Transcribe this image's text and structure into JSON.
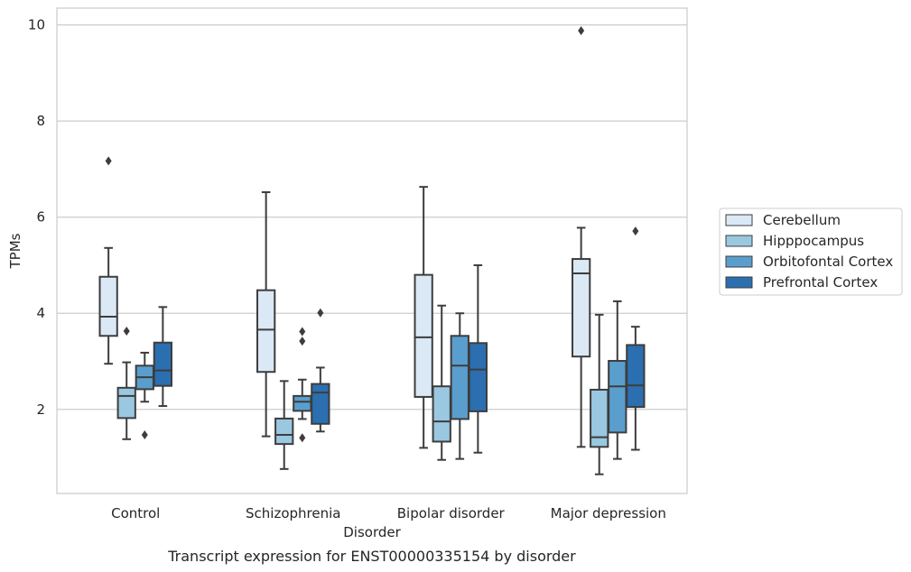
{
  "chart_data": {
    "type": "boxplot",
    "title": "",
    "caption": "Transcript expression for ENST00000335154 by disorder",
    "xlabel": "Disorder",
    "ylabel": "TPMs",
    "ylim": [
      0.25,
      10.35
    ],
    "yticks": [
      2,
      4,
      6,
      8,
      10
    ],
    "grid": "horizontal",
    "legend_position": "right",
    "categories": [
      "Control",
      "Schizophrenia",
      "Bipolar disorder",
      "Major depression"
    ],
    "series": [
      {
        "name": "Cerebellum",
        "color": "#dbe9f6",
        "boxes": [
          {
            "whislo": 2.95,
            "q1": 3.53,
            "med": 3.93,
            "q3": 4.76,
            "whishi": 5.36,
            "fliers": [
              7.17
            ]
          },
          {
            "whislo": 1.44,
            "q1": 2.78,
            "med": 3.66,
            "q3": 4.48,
            "whishi": 6.52,
            "fliers": []
          },
          {
            "whislo": 1.2,
            "q1": 2.26,
            "med": 3.5,
            "q3": 4.8,
            "whishi": 6.63,
            "fliers": []
          },
          {
            "whislo": 1.22,
            "q1": 3.1,
            "med": 4.83,
            "q3": 5.13,
            "whishi": 5.78,
            "fliers": [
              9.88
            ]
          }
        ]
      },
      {
        "name": "Hipppocampus",
        "color": "#9ac8e0",
        "boxes": [
          {
            "whislo": 1.38,
            "q1": 1.82,
            "med": 2.28,
            "q3": 2.45,
            "whishi": 2.98,
            "fliers": [
              3.63
            ]
          },
          {
            "whislo": 0.76,
            "q1": 1.28,
            "med": 1.47,
            "q3": 1.81,
            "whishi": 2.59,
            "fliers": []
          },
          {
            "whislo": 0.95,
            "q1": 1.33,
            "med": 1.75,
            "q3": 2.48,
            "whishi": 4.16,
            "fliers": []
          },
          {
            "whislo": 0.65,
            "q1": 1.22,
            "med": 1.42,
            "q3": 2.41,
            "whishi": 3.97,
            "fliers": []
          }
        ]
      },
      {
        "name": "Orbitofontal Cortex",
        "color": "#5a9ecd",
        "boxes": [
          {
            "whislo": 2.16,
            "q1": 2.42,
            "med": 2.67,
            "q3": 2.91,
            "whishi": 3.18,
            "fliers": [
              1.47
            ]
          },
          {
            "whislo": 1.8,
            "q1": 1.97,
            "med": 2.16,
            "q3": 2.28,
            "whishi": 2.62,
            "fliers": [
              3.62,
              3.42,
              1.41
            ]
          },
          {
            "whislo": 0.97,
            "q1": 1.8,
            "med": 2.91,
            "q3": 3.53,
            "whishi": 4.0,
            "fliers": []
          },
          {
            "whislo": 0.97,
            "q1": 1.52,
            "med": 2.48,
            "q3": 3.01,
            "whishi": 4.25,
            "fliers": []
          }
        ]
      },
      {
        "name": "Prefrontal Cortex",
        "color": "#2b6fb0",
        "boxes": [
          {
            "whislo": 2.07,
            "q1": 2.49,
            "med": 2.81,
            "q3": 3.39,
            "whishi": 4.13,
            "fliers": []
          },
          {
            "whislo": 1.54,
            "q1": 1.7,
            "med": 2.35,
            "q3": 2.53,
            "whishi": 2.87,
            "fliers": [
              4.01
            ]
          },
          {
            "whislo": 1.1,
            "q1": 1.96,
            "med": 2.83,
            "q3": 3.38,
            "whishi": 5.0,
            "fliers": []
          },
          {
            "whislo": 1.16,
            "q1": 2.05,
            "med": 2.5,
            "q3": 3.34,
            "whishi": 3.72,
            "fliers": [
              5.71
            ]
          }
        ]
      }
    ]
  },
  "colors": {
    "grid": "#cccccc",
    "frame": "#cccccc",
    "line": "#3d3d3d",
    "text": "#262626"
  }
}
